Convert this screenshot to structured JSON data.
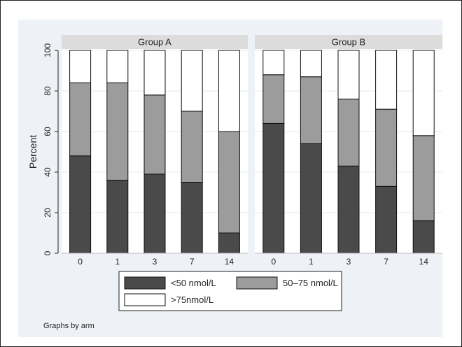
{
  "chart_data": {
    "type": "bar",
    "stacked": true,
    "ylabel": "Percent",
    "ylim": [
      0,
      100
    ],
    "yticks": [
      0,
      20,
      40,
      60,
      80,
      100
    ],
    "categories": [
      "0",
      "1",
      "3",
      "7",
      "14"
    ],
    "panels": [
      {
        "title": "Group A",
        "series": [
          {
            "name": "<50 nmol/L",
            "values": [
              48,
              36,
              39,
              35,
              10
            ]
          },
          {
            "name": "50–75 nmol/L",
            "values": [
              36,
              48,
              39,
              35,
              50
            ]
          },
          {
            "name": ">75nmol/L",
            "values": [
              16,
              16,
              22,
              30,
              40
            ]
          }
        ]
      },
      {
        "title": "Group B",
        "series": [
          {
            "name": "<50 nmol/L",
            "values": [
              64,
              54,
              43,
              33,
              16
            ]
          },
          {
            "name": "50–75 nmol/L",
            "values": [
              24,
              33,
              33,
              38,
              42
            ]
          },
          {
            "name": ">75nmol/L",
            "values": [
              12,
              13,
              24,
              29,
              42
            ]
          }
        ]
      }
    ],
    "legend": [
      {
        "label": "<50 nmol/L",
        "color": "#4a4a4a"
      },
      {
        "label": "50–75 nmol/L",
        "color": "#9c9c9c"
      },
      {
        "label": ">75nmol/L",
        "color": "#ffffff"
      }
    ],
    "legend_position": "bottom",
    "grid": true,
    "colors": [
      "#4a4a4a",
      "#9c9c9c",
      "#ffffff"
    ]
  },
  "note": "Graphs by arm"
}
